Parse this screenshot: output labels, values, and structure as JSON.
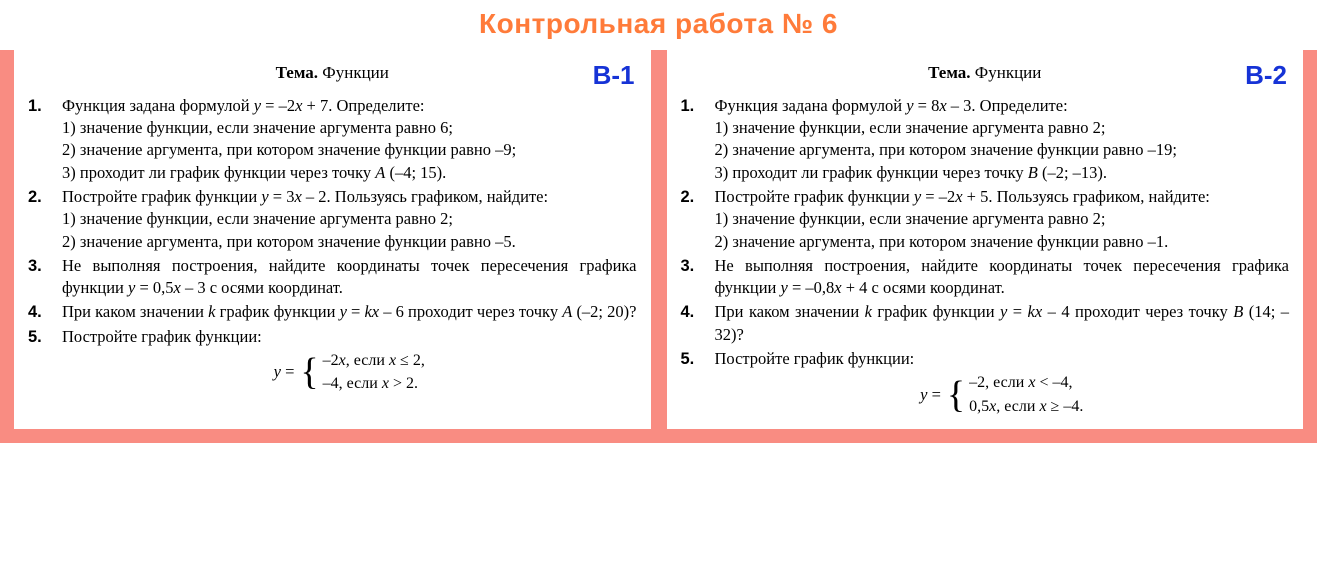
{
  "title": "Контрольная работа № 6",
  "title_color": "#ff7b3a",
  "frame_color": "#f98c82",
  "variant_color": "#1633d6",
  "topic_label": "Тема.",
  "topic_text": "Функции",
  "variants": [
    {
      "badge": "В-1",
      "tasks": [
        {
          "n": "1.",
          "lead": "Функция задана формулой <i class='mi'>y</i> = –2<i class='mi'>x</i> + 7. Определите:",
          "subs": [
            "1) значение функции, если значение аргумента равно 6;",
            "2) значение аргумента, при котором значение функции равно –9;",
            "3) проходит ли график функции через точку <i class='mi'>A</i> (–4; 15)."
          ]
        },
        {
          "n": "2.",
          "lead": "Постройте график функции <i class='mi'>y</i> = 3<i class='mi'>x</i> – 2. Пользуясь графиком, найдите:",
          "subs": [
            "1) значение функции, если значение аргумента равно 2;",
            "2) значение аргумента, при котором значение функции равно –5."
          ]
        },
        {
          "n": "3.",
          "lead": "Не выполняя построения, найдите координаты точек пересечения графика функции <i class='mi'>y</i> = 0,5<i class='mi'>x</i> – 3 с осями координат."
        },
        {
          "n": "4.",
          "lead": "При каком значении <i class='mi'>k</i> график функции <i class='mi'>y</i> = <i class='mi'>kx</i> – 6 проходит через точку <i class='mi'>A</i> (–2; 20)?"
        },
        {
          "n": "5.",
          "lead": "Постройте график функции:",
          "piecewise": {
            "prefix": "<i class='mi'>y</i> =",
            "cases": [
              "–2<i class='mi'>x</i>, если <i class='mi'>x</i> ≤ 2,",
              "–4, если <i class='mi'>x</i> > 2."
            ]
          }
        }
      ]
    },
    {
      "badge": "В-2",
      "tasks": [
        {
          "n": "1.",
          "lead": "Функция задана формулой <i class='mi'>y</i> = 8<i class='mi'>x</i> – 3. Определите:",
          "subs": [
            "1) значение функции, если значение аргумента равно 2;",
            "2) значение аргумента, при котором значение функции равно –19;",
            "3) проходит ли график функции через точку <i class='mi'>B</i> (–2; –13)."
          ]
        },
        {
          "n": "2.",
          "lead": "Постройте график функции <i class='mi'>y</i> = –2<i class='mi'>x</i> + 5. Пользуясь графиком, найдите:",
          "subs": [
            "1) значение функции, если значение аргумента равно 2;",
            "2) значение аргумента, при котором значение функции равно –1."
          ]
        },
        {
          "n": "3.",
          "lead": "Не выполняя построения, найдите координаты точек пересечения графика функции <i class='mi'>y</i> = –0,8<i class='mi'>x</i> + 4 с осями координат."
        },
        {
          "n": "4.",
          "lead": "При каком значении <i class='mi'>k</i> график функции <i class='mi'>y</i> = <i class='mi'>kx</i> – 4 проходит через точку <i class='mi'>B</i> (14; –32)?"
        },
        {
          "n": "5.",
          "lead": "Постройте график функции:",
          "piecewise": {
            "prefix": "<i class='mi'>y</i> =",
            "cases": [
              "–2, если <i class='mi'>x</i> < –4,",
              "0,5<i class='mi'>x</i>, если <i class='mi'>x</i> ≥ –4."
            ]
          }
        }
      ]
    }
  ]
}
